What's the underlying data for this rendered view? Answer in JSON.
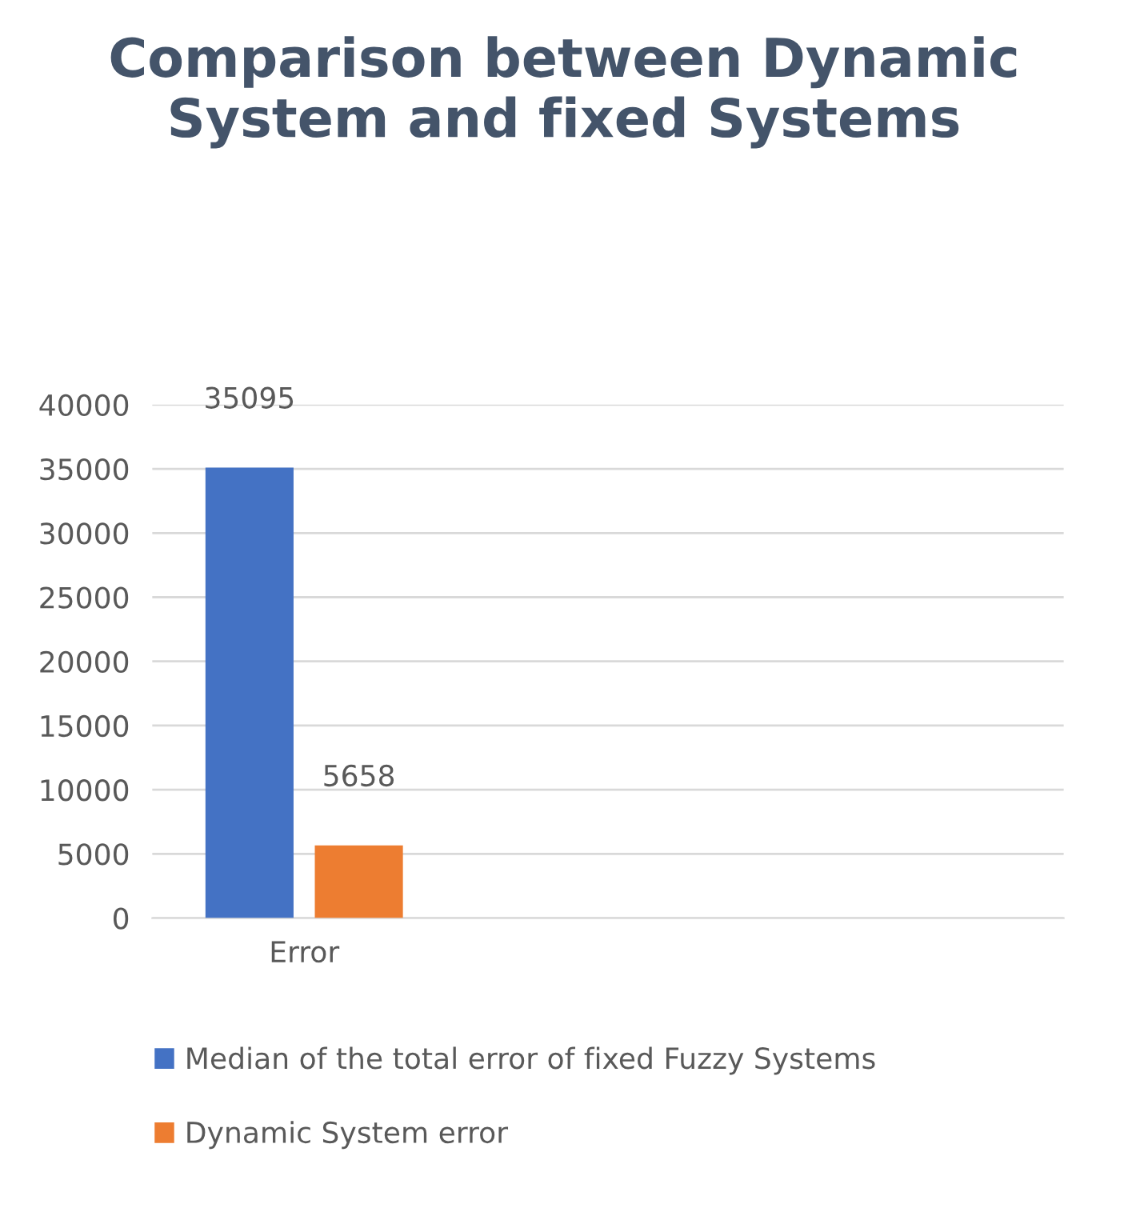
{
  "chart_data": {
    "type": "bar",
    "title": "Comparison between Dynamic System and fixed Systems",
    "categories": [
      "Error",
      null,
      null
    ],
    "series": [
      {
        "name": "Median of the total error of fixed Fuzzy Systems",
        "color": "#4472c4",
        "values": [
          35095,
          null,
          null
        ]
      },
      {
        "name": "Dynamic System error",
        "color": "#ed7d31",
        "values": [
          5658,
          null,
          null
        ]
      }
    ],
    "ylim": [
      0,
      40000
    ],
    "yticks": [
      0,
      5000,
      10000,
      15000,
      20000,
      25000,
      30000,
      35000,
      40000
    ],
    "grid": "y",
    "legend": "bottom",
    "data_labels": true
  }
}
